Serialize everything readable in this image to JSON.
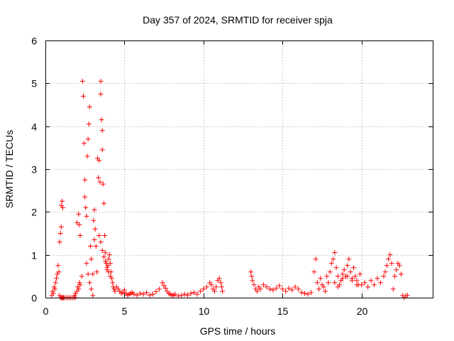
{
  "chart_data": {
    "type": "scatter",
    "title": "Day 357 of 2024, SRMTID for receiver spja",
    "xlabel": "GPS time / hours",
    "ylabel": "SRMTID / TECUs",
    "xlim": [
      0,
      24.5
    ],
    "ylim": [
      0,
      6
    ],
    "xticks": [
      0,
      5,
      10,
      15,
      20
    ],
    "yticks": [
      0,
      1,
      2,
      3,
      4,
      5,
      6
    ],
    "xtick_labels": [
      "0",
      "5",
      "10",
      "15",
      "20"
    ],
    "ytick_labels": [
      "0",
      "1",
      "2",
      "3",
      "4",
      "5",
      "6"
    ],
    "grid": true,
    "legend": "none",
    "marker": "plus",
    "series": [
      {
        "name": "SRMTID spja",
        "color": "#ff0000",
        "x": [
          0.4,
          0.45,
          0.5,
          0.55,
          0.6,
          0.65,
          0.7,
          0.75,
          0.8,
          0.85,
          0.9,
          0.95,
          1.0,
          1.0,
          1.05,
          1.1,
          0.9,
          0.95,
          1.0,
          1.05,
          1.1,
          1.15,
          1.2,
          1.3,
          1.4,
          1.5,
          1.6,
          1.7,
          1.8,
          1.9,
          2.0,
          2.1,
          2.15,
          2.2,
          1.85,
          1.9,
          2.0,
          2.05,
          2.1,
          2.15,
          2.2,
          2.3,
          2.35,
          2.4,
          2.45,
          2.5,
          2.5,
          2.55,
          2.6,
          2.65,
          2.7,
          2.75,
          2.8,
          2.85,
          2.9,
          3.0,
          3.05,
          3.1,
          3.1,
          3.15,
          3.2,
          3.25,
          3.3,
          3.35,
          3.4,
          3.45,
          3.5,
          3.5,
          3.55,
          3.6,
          3.6,
          3.65,
          3.7,
          3.75,
          3.8,
          3.85,
          3.9,
          3.95,
          4.0,
          4.05,
          4.1,
          4.15,
          4.2,
          4.25,
          4.3,
          4.35,
          4.4,
          4.5,
          4.6,
          4.7,
          4.8,
          4.9,
          5.0,
          5.1,
          5.2,
          5.3,
          5.4,
          5.5,
          5.6,
          5.8,
          6.0,
          6.2,
          6.4,
          6.6,
          6.8,
          7.0,
          7.2,
          7.4,
          7.5,
          7.6,
          7.7,
          7.8,
          7.9,
          8.0,
          8.1,
          8.2,
          8.4,
          8.6,
          8.8,
          9.0,
          9.2,
          9.4,
          9.6,
          9.8,
          10.0,
          10.2,
          10.4,
          10.5,
          10.6,
          10.7,
          10.8,
          10.9,
          11.0,
          11.1,
          11.15,
          11.2,
          13.0,
          13.05,
          13.1,
          13.2,
          13.3,
          13.4,
          13.5,
          13.6,
          13.8,
          14.0,
          14.2,
          14.4,
          14.6,
          14.8,
          15.0,
          15.2,
          15.4,
          15.6,
          15.8,
          16.0,
          16.2,
          16.4,
          16.6,
          16.8,
          17.0,
          17.1,
          17.2,
          17.3,
          17.4,
          17.5,
          17.6,
          17.7,
          17.8,
          17.9,
          18.0,
          18.1,
          18.2,
          18.3,
          18.4,
          18.5,
          18.6,
          18.7,
          18.8,
          18.9,
          19.0,
          19.1,
          19.2,
          19.3,
          19.4,
          19.5,
          19.6,
          19.7,
          19.8,
          19.9,
          20.0,
          20.2,
          20.4,
          20.6,
          20.8,
          21.0,
          21.2,
          21.4,
          21.5,
          21.6,
          21.7,
          21.8,
          21.9,
          22.0,
          22.1,
          22.2,
          22.3,
          22.4,
          22.5,
          22.6,
          22.7,
          22.8,
          22.9,
          3.4,
          3.5,
          3.6,
          3.7,
          3.8,
          3.9,
          4.0,
          4.1,
          2.6,
          2.7,
          2.8,
          2.9,
          3.0,
          18.3,
          18.5,
          18.8,
          19.1,
          19.4,
          19.7
        ],
        "y": [
          0.05,
          0.15,
          0.1,
          0.25,
          0.2,
          0.35,
          0.45,
          0.55,
          0.75,
          0.6,
          1.3,
          1.5,
          1.65,
          2.15,
          2.25,
          2.1,
          0.05,
          0.0,
          0.0,
          0.0,
          0.0,
          0.0,
          0.0,
          0.0,
          0.0,
          0.0,
          0.0,
          0.0,
          0.0,
          0.0,
          1.75,
          1.95,
          1.7,
          1.45,
          0.05,
          0.1,
          0.15,
          0.25,
          0.2,
          0.35,
          0.3,
          0.5,
          5.05,
          4.7,
          3.6,
          2.75,
          2.35,
          2.1,
          1.9,
          3.3,
          3.7,
          4.05,
          4.45,
          1.2,
          0.9,
          0.55,
          1.8,
          1.35,
          2.05,
          1.6,
          1.2,
          0.6,
          3.25,
          2.8,
          3.2,
          2.7,
          5.05,
          4.75,
          4.15,
          3.9,
          3.45,
          2.65,
          2.2,
          1.45,
          1.05,
          0.8,
          0.65,
          0.75,
          0.9,
          1.0,
          0.8,
          0.6,
          0.45,
          0.35,
          0.25,
          0.2,
          0.15,
          0.25,
          0.2,
          0.15,
          0.1,
          0.12,
          0.18,
          0.1,
          0.06,
          0.08,
          0.1,
          0.12,
          0.08,
          0.06,
          0.1,
          0.08,
          0.12,
          0.06,
          0.08,
          0.14,
          0.2,
          0.35,
          0.28,
          0.22,
          0.15,
          0.1,
          0.08,
          0.05,
          0.06,
          0.08,
          0.04,
          0.05,
          0.08,
          0.06,
          0.1,
          0.12,
          0.08,
          0.15,
          0.2,
          0.25,
          0.35,
          0.3,
          0.2,
          0.15,
          0.25,
          0.4,
          0.45,
          0.35,
          0.25,
          0.15,
          0.6,
          0.5,
          0.4,
          0.3,
          0.2,
          0.15,
          0.25,
          0.2,
          0.3,
          0.25,
          0.2,
          0.18,
          0.22,
          0.28,
          0.2,
          0.15,
          0.22,
          0.18,
          0.25,
          0.2,
          0.12,
          0.1,
          0.08,
          0.12,
          0.6,
          0.9,
          0.35,
          0.2,
          0.45,
          0.3,
          0.25,
          0.15,
          0.5,
          0.35,
          0.6,
          0.8,
          0.9,
          1.05,
          0.7,
          0.5,
          0.3,
          0.4,
          0.55,
          0.65,
          0.5,
          0.75,
          0.9,
          0.6,
          0.45,
          0.7,
          0.5,
          0.4,
          0.3,
          0.55,
          0.3,
          0.35,
          0.25,
          0.4,
          0.3,
          0.45,
          0.35,
          0.5,
          0.6,
          0.75,
          0.9,
          1.0,
          0.8,
          0.2,
          0.5,
          0.65,
          0.8,
          0.75,
          0.55,
          0.05,
          0.0,
          0.05,
          0.05,
          1.45,
          1.3,
          1.1,
          0.95,
          0.85,
          0.7,
          0.6,
          0.5,
          0.8,
          0.55,
          0.35,
          0.2,
          0.05,
          0.35,
          0.25,
          0.45,
          0.5,
          0.4,
          0.3
        ]
      }
    ]
  }
}
